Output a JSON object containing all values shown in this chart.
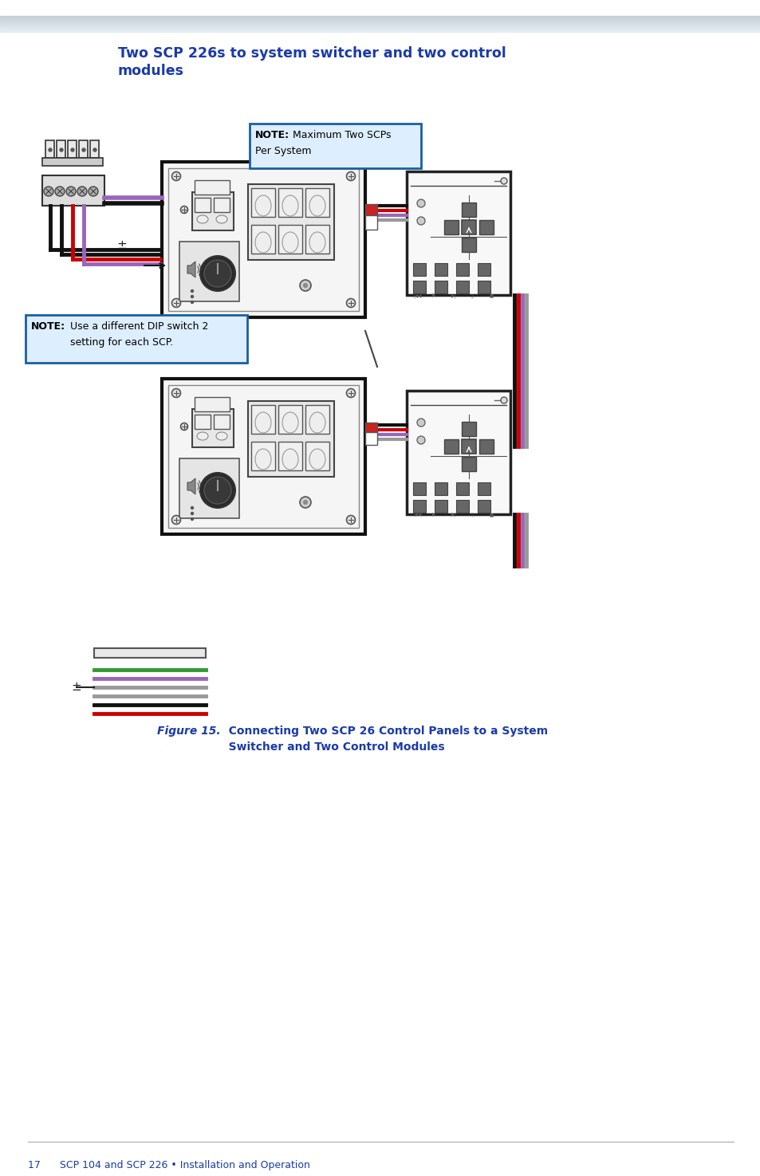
{
  "title_line1": "Two SCP 226s to system switcher and two control",
  "title_line2": "modules",
  "title_color": "#1a3aaa",
  "header_bar_color1": "#c8d8e8",
  "header_bar_color2": "#dde8f0",
  "bg_color": "#ffffff",
  "note_border_color": "#1a5fa0",
  "note_bg_color": "#ddeeff",
  "footer_text": "17      SCP 104 and SCP 226 • Installation and Operation",
  "footer_color": "#1a3aaa",
  "panel_face": "#f5f5f5",
  "panel_edge": "#111111",
  "btn_face": "#f0f0f0",
  "btn_edge": "#333333",
  "screw_color": "#555555",
  "knob_color": "#2a2a2a",
  "module_face": "#f8f8f8",
  "module_edge": "#222222",
  "dpad_color": "#666666",
  "wire_black": "#111111",
  "wire_red": "#cc0000",
  "wire_purple": "#9966bb",
  "wire_gray": "#999999",
  "wire_green": "#339933"
}
